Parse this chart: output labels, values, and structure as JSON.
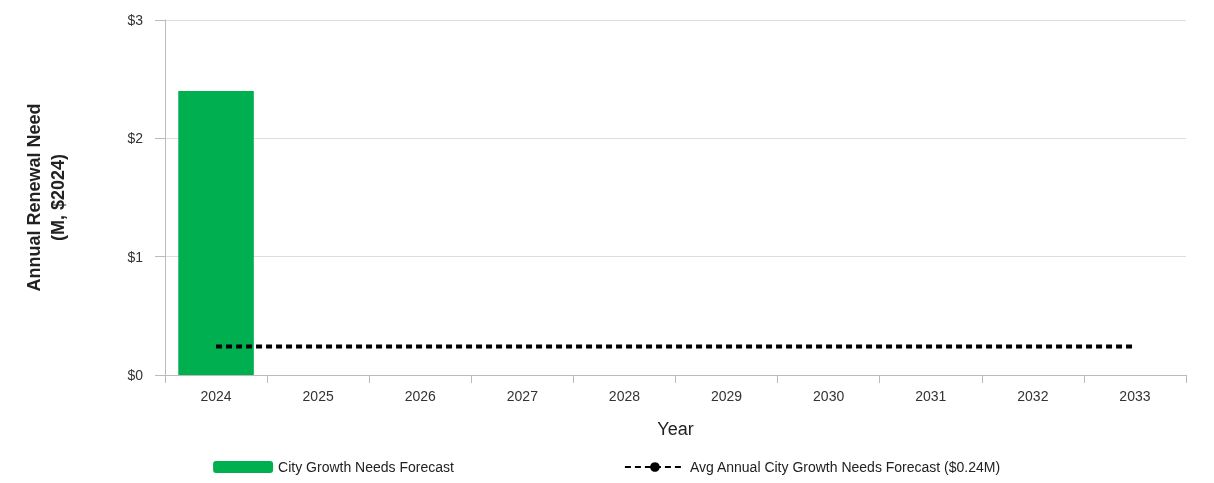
{
  "chart_data": {
    "type": "bar",
    "xlabel": "Year",
    "ylabel": "Annual Renewal Need\n(M, $2024)",
    "categories": [
      "2024",
      "2025",
      "2026",
      "2027",
      "2028",
      "2029",
      "2030",
      "2031",
      "2032",
      "2033"
    ],
    "series": [
      {
        "name": "City Growth Needs Forecast",
        "color": "#00b050",
        "values": [
          2.4,
          0,
          0,
          0,
          0,
          0,
          0,
          0,
          0,
          0
        ]
      },
      {
        "name": "Avg Annual City Growth Needs Forecast ($0.24M)",
        "type": "line",
        "line_style": "dashed",
        "color": "#000000",
        "values": [
          0.24,
          0.24,
          0.24,
          0.24,
          0.24,
          0.24,
          0.24,
          0.24,
          0.24,
          0.24
        ]
      }
    ],
    "ylim": [
      0,
      3
    ],
    "yticks": [
      {
        "value": 0,
        "label": "$0"
      },
      {
        "value": 1,
        "label": "$1"
      },
      {
        "value": 2,
        "label": "$2"
      },
      {
        "value": 3,
        "label": "$3"
      }
    ],
    "grid": "y",
    "legend": "bottom"
  }
}
